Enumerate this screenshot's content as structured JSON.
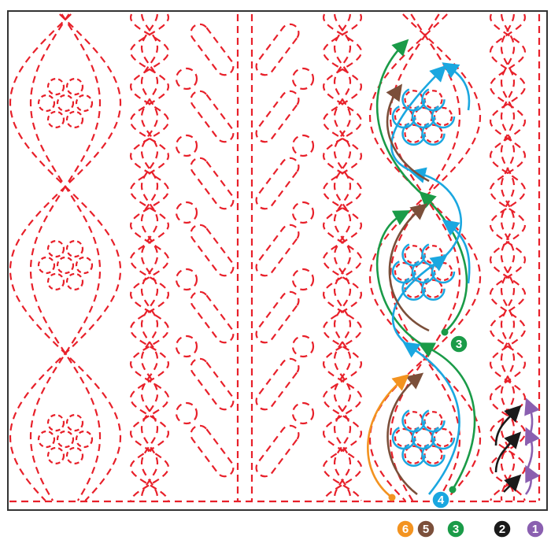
{
  "diagram": {
    "colors": {
      "stitch": "#e8202a",
      "frame": "#333333",
      "step1": "#8a5fb0",
      "step2": "#1a1a1a",
      "step3": "#1a9b48",
      "step4": "#1aa7e0",
      "step5": "#7b4f3a",
      "step6": "#f39320"
    },
    "step_badges": [
      {
        "label": "6",
        "color": "#f39320"
      },
      {
        "label": "5",
        "color": "#7b4f3a"
      },
      {
        "label": "3",
        "color": "#1a9b48"
      },
      {
        "label": "2",
        "color": "#1a1a1a"
      },
      {
        "label": "1",
        "color": "#8a5fb0"
      }
    ],
    "inline_badges": [
      {
        "label": "4",
        "color": "#1aa7e0"
      },
      {
        "label": "3",
        "color": "#1a9b48"
      }
    ]
  }
}
